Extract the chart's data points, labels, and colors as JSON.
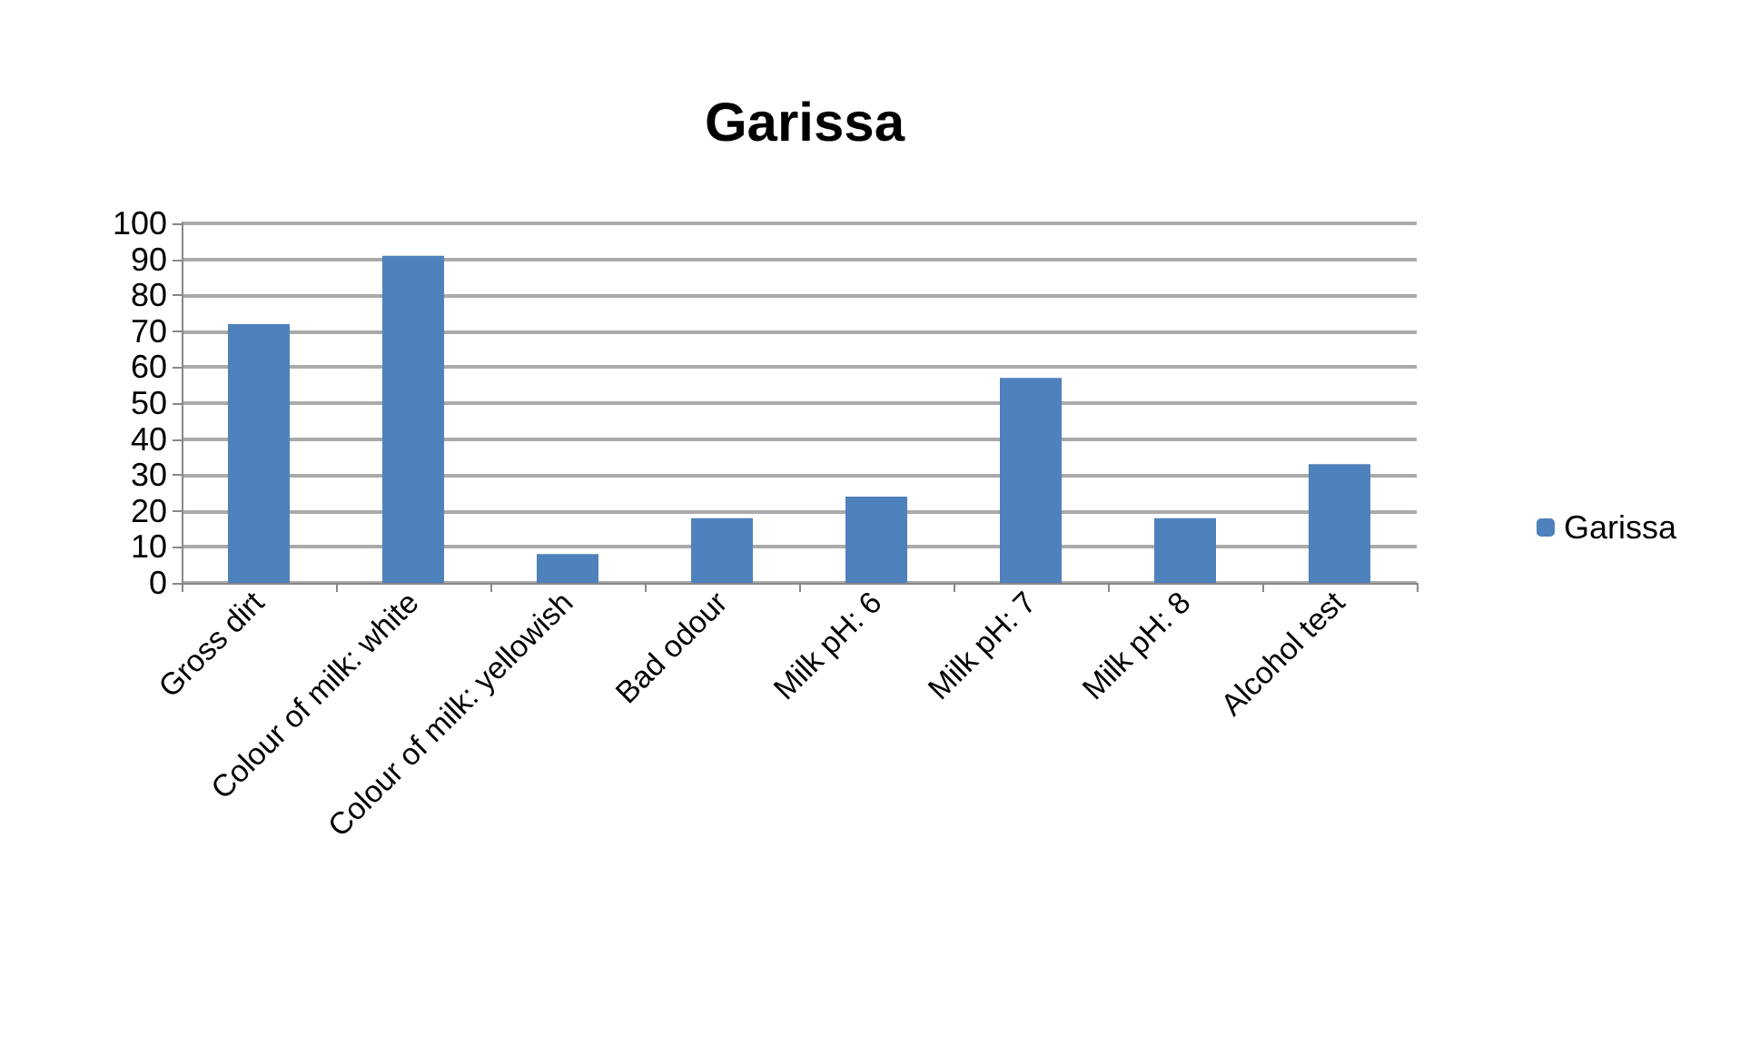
{
  "chart_data": {
    "type": "bar",
    "title": "Garissa",
    "categories": [
      "Gross dirt",
      "Colour of milk: white",
      "Colour of milk: yellowish",
      "Bad odour",
      "Milk pH: 6",
      "Milk pH: 7",
      "Milk pH: 8",
      "Alcohol test"
    ],
    "series": [
      {
        "name": "Garissa",
        "color": "#4f81bd",
        "values": [
          72,
          91,
          8,
          18,
          24,
          57,
          18,
          33
        ]
      }
    ],
    "ylim": [
      0,
      100
    ],
    "yticks": [
      0,
      10,
      20,
      30,
      40,
      50,
      60,
      70,
      80,
      90,
      100
    ],
    "grid": "y",
    "legend": "right"
  }
}
